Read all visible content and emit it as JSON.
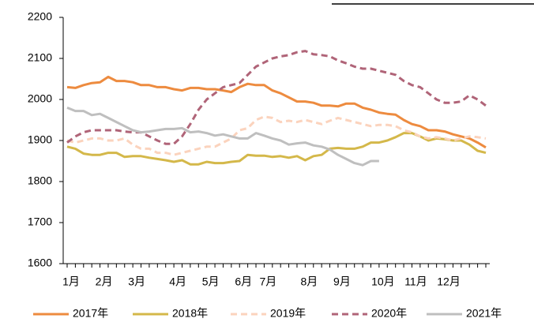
{
  "chart_data": {
    "type": "line",
    "categories": [
      "1月",
      null,
      null,
      null,
      "2月",
      null,
      null,
      null,
      "3月",
      null,
      null,
      null,
      null,
      "4月",
      null,
      null,
      null,
      "5月",
      null,
      null,
      null,
      "6月",
      null,
      null,
      "7月",
      null,
      null,
      null,
      null,
      "8月",
      null,
      null,
      null,
      "9月",
      null,
      null,
      null,
      null,
      "10月",
      null,
      null,
      null,
      "11月",
      null,
      null,
      null,
      "12月",
      null,
      null,
      null,
      null,
      null
    ],
    "series": [
      {
        "name": "2017年",
        "color": "#ed8b3f",
        "style": "solid",
        "values": [
          2030,
          2028,
          2035,
          2040,
          2042,
          2055,
          2045,
          2045,
          2042,
          2035,
          2035,
          2030,
          2030,
          2025,
          2022,
          2028,
          2028,
          2025,
          2025,
          2022,
          2018,
          2030,
          2038,
          2035,
          2035,
          2022,
          2015,
          2005,
          1995,
          1995,
          1992,
          1985,
          1985,
          1983,
          1990,
          1990,
          1980,
          1975,
          1968,
          1965,
          1963,
          1950,
          1940,
          1935,
          1925,
          1925,
          1922,
          1915,
          1910,
          1905,
          1895,
          1883
        ]
      },
      {
        "name": "2018年",
        "color": "#d4b84a",
        "style": "solid",
        "values": [
          1885,
          1880,
          1868,
          1865,
          1865,
          1870,
          1870,
          1860,
          1862,
          1862,
          1858,
          1855,
          1852,
          1848,
          1852,
          1842,
          1842,
          1848,
          1845,
          1845,
          1848,
          1850,
          1865,
          1863,
          1863,
          1860,
          1862,
          1858,
          1862,
          1852,
          1862,
          1865,
          1880,
          1882,
          1880,
          1880,
          1885,
          1895,
          1895,
          1900,
          1908,
          1918,
          1918,
          1910,
          1900,
          1905,
          1903,
          1900,
          1900,
          1890,
          1875,
          1870
        ]
      },
      {
        "name": "2019年",
        "color": "#fbd3bd",
        "style": "dashed",
        "values": [
          1900,
          1895,
          1900,
          1905,
          1905,
          1900,
          1900,
          1905,
          1890,
          1880,
          1880,
          1870,
          1870,
          1865,
          1870,
          1875,
          1880,
          1885,
          1885,
          1895,
          1905,
          1925,
          1930,
          1950,
          1958,
          1955,
          1945,
          1948,
          1945,
          1950,
          1945,
          1940,
          1948,
          1955,
          1950,
          1945,
          1940,
          1935,
          1938,
          1938,
          1935,
          1925,
          1920,
          1910,
          1905,
          1908,
          1905,
          1900,
          1905,
          1910,
          1908,
          1905
        ]
      },
      {
        "name": "2020年",
        "color": "#b06478",
        "style": "dashed",
        "values": [
          1895,
          1910,
          1920,
          1925,
          1925,
          1925,
          1925,
          1922,
          1920,
          1920,
          1910,
          1900,
          1892,
          1892,
          1910,
          1940,
          1975,
          2000,
          2015,
          2030,
          2035,
          2040,
          2060,
          2080,
          2090,
          2100,
          2105,
          2108,
          2115,
          2118,
          2110,
          2108,
          2105,
          2095,
          2088,
          2080,
          2075,
          2075,
          2070,
          2065,
          2060,
          2045,
          2035,
          2030,
          2015,
          2000,
          1992,
          1992,
          1995,
          2010,
          2000,
          1985
        ]
      },
      {
        "name": "2021年",
        "color": "#bfbfbf",
        "style": "solid",
        "values": [
          1980,
          1972,
          1972,
          1962,
          1965,
          1955,
          1945,
          1935,
          1925,
          1920,
          1922,
          1925,
          1928,
          1928,
          1930,
          1920,
          1922,
          1918,
          1912,
          1915,
          1910,
          1905,
          1905,
          1918,
          1912,
          1905,
          1900,
          1890,
          1893,
          1895,
          1888,
          1885,
          1878,
          1865,
          1855,
          1845,
          1840,
          1850,
          1850,
          null,
          null,
          null,
          null,
          null,
          null,
          null,
          null,
          null,
          null,
          null,
          null,
          null
        ]
      }
    ],
    "ylim": [
      1600,
      2200
    ],
    "yticks": [
      1600,
      1700,
      1800,
      1900,
      2000,
      2100,
      2200
    ],
    "legend": "bottom"
  }
}
